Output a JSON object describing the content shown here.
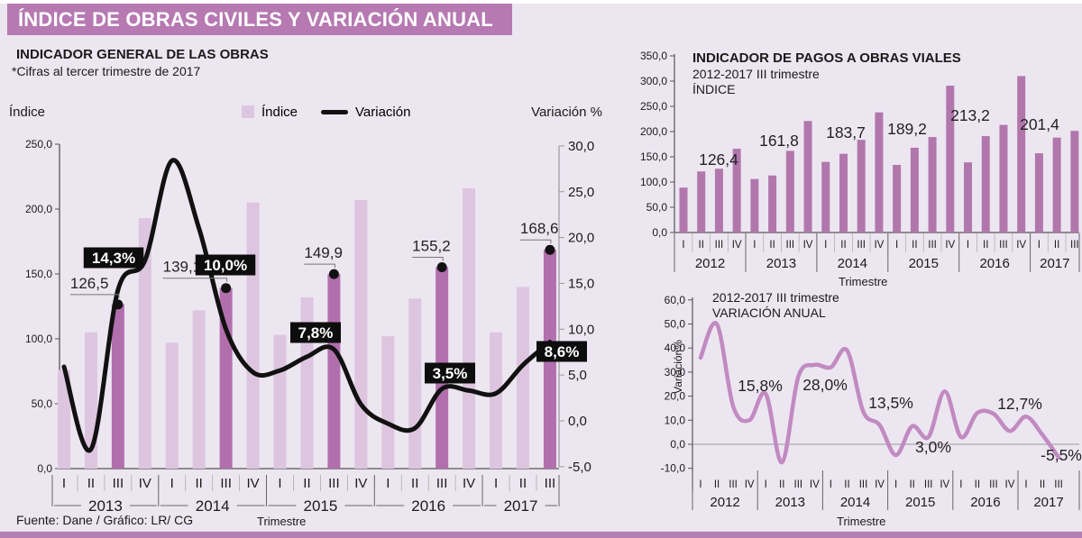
{
  "header": {
    "title": "ÍNDICE DE OBRAS CIVILES Y VARIACIÓN ANUAL"
  },
  "footer": {
    "source": "Fuente: Dane / Gráfico: LR/ CG"
  },
  "colors": {
    "header_bar": "#b679b2",
    "background": "#ece6f1",
    "bar_light": "#ddc5df",
    "bar_dark": "#b26fae",
    "bar_right": "#b177ad",
    "line_black": "#111111",
    "line_purple": "#c18ac1",
    "annotation_box": "#0d0d0d",
    "bottom_strip": "#b47fb3"
  },
  "chart_data": [
    {
      "id": "general_works",
      "type": "bar+line",
      "title": "INDICADOR GENERAL DE LAS OBRAS",
      "subtitle": "*Cifras al tercer trimestre de 2017",
      "left_axis_title": "Índice",
      "right_axis_title": "Variación %",
      "xlabel": "Trimestre",
      "legend": [
        {
          "label": "Índice"
        },
        {
          "label": "Variación"
        }
      ],
      "groups": [
        {
          "year": "2013",
          "quarters": [
            "I",
            "II",
            "III",
            "IV"
          ]
        },
        {
          "year": "2014",
          "quarters": [
            "I",
            "II",
            "III",
            "IV"
          ]
        },
        {
          "year": "2015",
          "quarters": [
            "I",
            "II",
            "III",
            "IV"
          ]
        },
        {
          "year": "2016",
          "quarters": [
            "I",
            "II",
            "III",
            "IV"
          ]
        },
        {
          "year": "2017",
          "quarters": [
            "I",
            "II",
            "III"
          ]
        }
      ],
      "index_values": [
        76,
        105,
        126.5,
        193,
        97,
        122,
        139.1,
        205,
        103,
        132,
        149.9,
        207,
        102,
        131,
        155.2,
        216,
        105,
        140,
        168.6
      ],
      "highlight_indices": [
        2,
        6,
        10,
        14,
        18
      ],
      "index_labels": [
        {
          "index": 2,
          "text": "126,5"
        },
        {
          "index": 6,
          "text": "139,1"
        },
        {
          "index": 10,
          "text": "149,9"
        },
        {
          "index": 14,
          "text": "155,2"
        },
        {
          "index": 18,
          "text": "168,6"
        }
      ],
      "variation_values": [
        5.9,
        -3.1,
        14.3,
        17.5,
        28.4,
        21,
        10,
        5.3,
        5.5,
        7,
        7.8,
        1.8,
        -0.3,
        -0.8,
        3.5,
        3.3,
        3,
        6.1,
        8.6
      ],
      "variation_labels": [
        {
          "index": 2,
          "text": "14,3%"
        },
        {
          "index": 6,
          "text": "10,0%"
        },
        {
          "index": 10,
          "text": "7,8%"
        },
        {
          "index": 14,
          "text": "3,5%"
        },
        {
          "index": 18,
          "text": "8,6%"
        }
      ],
      "left_ylim": [
        0,
        250
      ],
      "left_ticks": [
        [
          250,
          "250,0"
        ],
        [
          200,
          "200,0"
        ],
        [
          150,
          "150,0"
        ],
        [
          100,
          "100,0"
        ],
        [
          50,
          "50,0"
        ],
        [
          0,
          "0,0"
        ]
      ],
      "right_ylim": [
        -5,
        30
      ],
      "right_ticks": [
        [
          30,
          "30,0"
        ],
        [
          25,
          "25,0"
        ],
        [
          20,
          "20,0"
        ],
        [
          15,
          "15,0"
        ],
        [
          10,
          "10,0"
        ],
        [
          5,
          "5,0"
        ],
        [
          0,
          "0,0"
        ],
        [
          -5,
          "-5,0"
        ]
      ]
    },
    {
      "id": "road_payments_index",
      "type": "bar",
      "title": "INDICADOR DE PAGOS A OBRAS VIALES",
      "subtitle": "2012-2017 III trimestre",
      "subtitle2": "ÍNDICE",
      "xlabel": "Trimestre",
      "groups": [
        {
          "year": "2012",
          "quarters": [
            "I",
            "II",
            "III",
            "IV"
          ]
        },
        {
          "year": "2013",
          "quarters": [
            "I",
            "II",
            "III",
            "IV"
          ]
        },
        {
          "year": "2014",
          "quarters": [
            "I",
            "II",
            "III",
            "IV"
          ]
        },
        {
          "year": "2015",
          "quarters": [
            "I",
            "II",
            "III",
            "IV"
          ]
        },
        {
          "year": "2016",
          "quarters": [
            "I",
            "II",
            "III",
            "IV"
          ]
        },
        {
          "year": "2017",
          "quarters": [
            "I",
            "II",
            "III"
          ]
        }
      ],
      "values": [
        89,
        121,
        126.4,
        166,
        106,
        113,
        161.8,
        221,
        140,
        156,
        183.7,
        238,
        134,
        168,
        189.2,
        291,
        139,
        191,
        213.2,
        310,
        157,
        188,
        201.4
      ],
      "value_labels": [
        {
          "index": 2,
          "text": "126,4"
        },
        {
          "index": 6,
          "text": "161,8"
        },
        {
          "index": 10,
          "text": "183,7"
        },
        {
          "index": 14,
          "text": "189,2"
        },
        {
          "index": 18,
          "text": "213,2"
        },
        {
          "index": 22,
          "text": "201,4"
        }
      ],
      "ylim": [
        0,
        350
      ],
      "ticks": [
        [
          350,
          "350,0"
        ],
        [
          300,
          "300,0"
        ],
        [
          250,
          "250,0"
        ],
        [
          200,
          "200,0"
        ],
        [
          150,
          "150,0"
        ],
        [
          100,
          "100,0"
        ],
        [
          50,
          "50,0"
        ],
        [
          0,
          "0,0"
        ]
      ]
    },
    {
      "id": "road_payments_variation",
      "type": "line",
      "title": "2012-2017 III trimestre",
      "subtitle": "VARIACIÓN ANUAL",
      "ylabel": "Variación%",
      "xlabel": "Trimestre",
      "groups": [
        {
          "year": "2012",
          "quarters": [
            "I",
            "II",
            "III",
            "IV"
          ]
        },
        {
          "year": "2013",
          "quarters": [
            "I",
            "II",
            "III",
            "IV"
          ]
        },
        {
          "year": "2014",
          "quarters": [
            "I",
            "II",
            "III",
            "IV"
          ]
        },
        {
          "year": "2015",
          "quarters": [
            "I",
            "II",
            "III",
            "IV"
          ]
        },
        {
          "year": "2016",
          "quarters": [
            "I",
            "II",
            "III",
            "IV"
          ]
        },
        {
          "year": "2017",
          "quarters": [
            "I",
            "II",
            "III"
          ]
        }
      ],
      "values": [
        36,
        50,
        15.8,
        10,
        21,
        -7.5,
        28,
        33,
        32,
        39,
        13.5,
        8,
        -4.5,
        7.5,
        3,
        22,
        3,
        13,
        12.7,
        5.5,
        11.5,
        4,
        -5.5
      ],
      "value_labels": [
        {
          "index": 2,
          "text": "15,8%"
        },
        {
          "index": 6,
          "text": "28,0%"
        },
        {
          "index": 10,
          "text": "13,5%"
        },
        {
          "index": 14,
          "text": "3,0%"
        },
        {
          "index": 18,
          "text": "12,7%"
        },
        {
          "index": 22,
          "text": "-5,5%"
        }
      ],
      "ylim": [
        -10,
        60
      ],
      "ticks": [
        [
          60,
          "60,0"
        ],
        [
          50,
          "50,0"
        ],
        [
          40,
          "40,0"
        ],
        [
          30,
          "30,0"
        ],
        [
          20,
          "20,0"
        ],
        [
          10,
          "10,0"
        ],
        [
          0,
          "0,0"
        ],
        [
          -10,
          "-10,0"
        ]
      ]
    }
  ]
}
